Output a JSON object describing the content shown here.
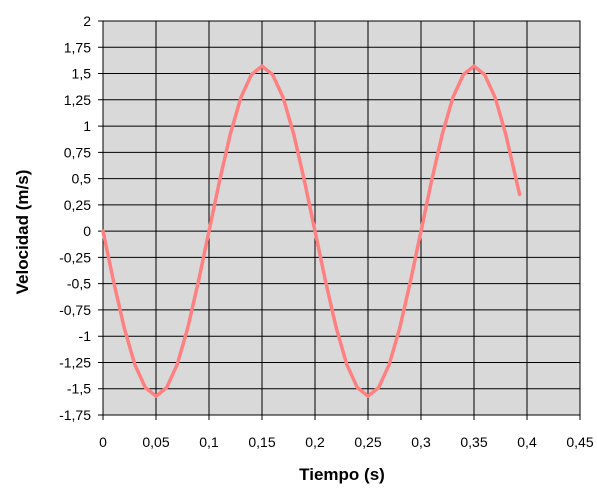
{
  "chart_data": {
    "type": "line",
    "title": "",
    "xlabel": "Tiempo (s)",
    "ylabel": "Velocidad (m/s)",
    "xlim": [
      0,
      0.45
    ],
    "ylim": [
      -1.75,
      2
    ],
    "x_ticks": [
      "0",
      "0,05",
      "0,1",
      "0,15",
      "0,2",
      "0,25",
      "0,3",
      "0,35",
      "0,4",
      "0,45"
    ],
    "y_ticks": [
      "2",
      "1,75",
      "1,5",
      "1,25",
      "1",
      "0,75",
      "0,5",
      "0,25",
      "0",
      "-0,25",
      "-0,5",
      "-0,75",
      "-1",
      "-1,25",
      "-1,5",
      "-1,75"
    ],
    "grid": true,
    "legend": "none",
    "colors": {
      "plot_background": "#d9d9d9",
      "grid": "#000000",
      "series": "#ff8080"
    },
    "series": [
      {
        "values": [
          [
            0.0,
            0.0
          ],
          [
            0.01,
            -0.48
          ],
          [
            0.02,
            -0.92
          ],
          [
            0.03,
            -1.27
          ],
          [
            0.04,
            -1.49
          ],
          [
            0.05,
            -1.57
          ],
          [
            0.06,
            -1.49
          ],
          [
            0.07,
            -1.27
          ],
          [
            0.08,
            -0.92
          ],
          [
            0.09,
            -0.48
          ],
          [
            0.1,
            0.0
          ],
          [
            0.11,
            0.48
          ],
          [
            0.12,
            0.92
          ],
          [
            0.13,
            1.27
          ],
          [
            0.14,
            1.49
          ],
          [
            0.15,
            1.57
          ],
          [
            0.16,
            1.49
          ],
          [
            0.17,
            1.27
          ],
          [
            0.18,
            0.92
          ],
          [
            0.19,
            0.48
          ],
          [
            0.2,
            0.0
          ],
          [
            0.21,
            -0.48
          ],
          [
            0.22,
            -0.92
          ],
          [
            0.23,
            -1.27
          ],
          [
            0.24,
            -1.49
          ],
          [
            0.25,
            -1.57
          ],
          [
            0.26,
            -1.49
          ],
          [
            0.27,
            -1.27
          ],
          [
            0.28,
            -0.92
          ],
          [
            0.29,
            -0.48
          ],
          [
            0.3,
            0.0
          ],
          [
            0.31,
            0.48
          ],
          [
            0.32,
            0.92
          ],
          [
            0.33,
            1.27
          ],
          [
            0.34,
            1.49
          ],
          [
            0.35,
            1.57
          ],
          [
            0.36,
            1.49
          ],
          [
            0.37,
            1.27
          ],
          [
            0.38,
            0.92
          ],
          [
            0.39,
            0.48
          ],
          [
            0.393,
            0.35
          ]
        ]
      }
    ]
  }
}
